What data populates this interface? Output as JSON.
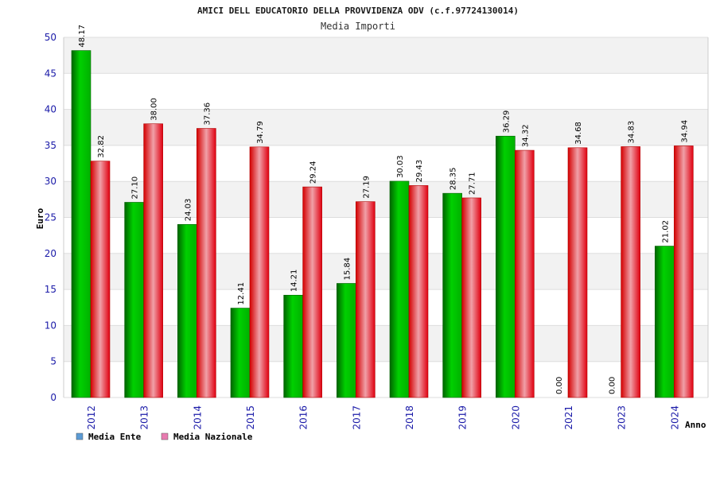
{
  "chart_data": {
    "type": "bar",
    "title": "AMICI DELL EDUCATORIO DELLA PROVVIDENZA ODV (c.f.97724130014)",
    "subtitle": "Media Importi",
    "xlabel": "Anno",
    "ylabel": "Euro",
    "ylim": [
      0,
      50
    ],
    "yticks": [
      0,
      5,
      10,
      15,
      20,
      25,
      30,
      35,
      40,
      45,
      50
    ],
    "grid": true,
    "legend_position": "bottom-left",
    "categories": [
      "2012",
      "2013",
      "2014",
      "2015",
      "2016",
      "2017",
      "2018",
      "2019",
      "2020",
      "2021",
      "2023",
      "2024"
    ],
    "series": [
      {
        "name": "Media Ente",
        "color": "#00b400",
        "legend_color": "#5b9bd5",
        "values": [
          48.17,
          27.1,
          24.03,
          12.41,
          14.21,
          15.84,
          30.03,
          28.35,
          36.29,
          0.0,
          0.0,
          21.02
        ],
        "labels": [
          "48.17",
          "27.10",
          "24.03",
          "12.41",
          "14.21",
          "15.84",
          "30.03",
          "28.35",
          "36.29",
          "0.00",
          "0.00",
          "21.02"
        ]
      },
      {
        "name": "Media Nazionale",
        "color": "#ff0000",
        "legend_color": "#e87bb0",
        "values": [
          32.82,
          38.0,
          37.36,
          34.79,
          29.24,
          27.19,
          29.43,
          27.71,
          34.32,
          34.68,
          34.83,
          34.94
        ],
        "labels": [
          "32.82",
          "38.00",
          "37.36",
          "34.79",
          "29.24",
          "27.19",
          "29.43",
          "27.71",
          "34.32",
          "34.68",
          "34.83",
          "34.94"
        ]
      }
    ]
  }
}
